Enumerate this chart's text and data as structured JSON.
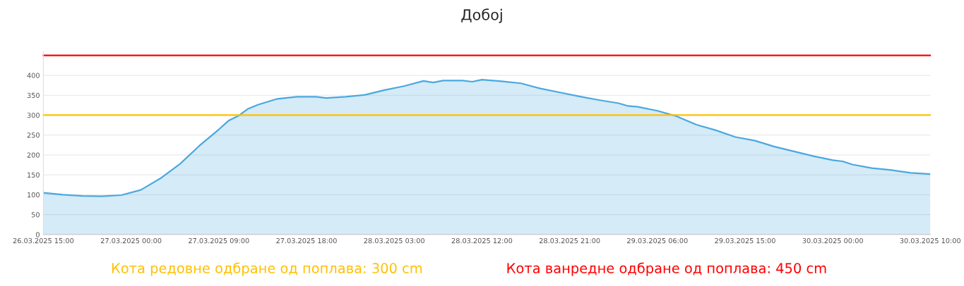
{
  "chart_data": {
    "type": "area",
    "title": "Добој",
    "x": [
      "2025-03-26T15:00",
      "2025-03-26T17:00",
      "2025-03-26T19:00",
      "2025-03-26T21:00",
      "2025-03-26T23:00",
      "2025-03-27T01:00",
      "2025-03-27T03:00",
      "2025-03-27T05:00",
      "2025-03-27T07:00",
      "2025-03-27T09:00",
      "2025-03-27T10:00",
      "2025-03-27T11:00",
      "2025-03-27T12:00",
      "2025-03-27T13:00",
      "2025-03-27T15:00",
      "2025-03-27T17:00",
      "2025-03-27T19:00",
      "2025-03-27T20:00",
      "2025-03-27T22:00",
      "2025-03-28T00:00",
      "2025-03-28T02:00",
      "2025-03-28T04:00",
      "2025-03-28T06:00",
      "2025-03-28T07:00",
      "2025-03-28T08:00",
      "2025-03-28T10:00",
      "2025-03-28T11:00",
      "2025-03-28T12:00",
      "2025-03-28T14:00",
      "2025-03-28T16:00",
      "2025-03-28T18:00",
      "2025-03-28T20:00",
      "2025-03-28T22:00",
      "2025-03-29T00:00",
      "2025-03-29T02:00",
      "2025-03-29T03:00",
      "2025-03-29T04:00",
      "2025-03-29T06:00",
      "2025-03-29T08:00",
      "2025-03-29T10:00",
      "2025-03-29T12:00",
      "2025-03-29T14:00",
      "2025-03-29T16:00",
      "2025-03-29T18:00",
      "2025-03-29T20:00",
      "2025-03-29T22:00",
      "2025-03-30T00:00",
      "2025-03-30T01:00",
      "2025-03-30T02:00",
      "2025-03-30T04:00",
      "2025-03-30T06:00",
      "2025-03-30T08:00",
      "2025-03-30T10:00"
    ],
    "series": [
      {
        "color": "#4aa8e0",
        "values": [
          105,
          100,
          97,
          96,
          99,
          112,
          141,
          177,
          223,
          264,
          286,
          298,
          316,
          326,
          341,
          346,
          346,
          343,
          346,
          351,
          363,
          373,
          386,
          382,
          387,
          387,
          384,
          389,
          385,
          380,
          367,
          357,
          347,
          338,
          330,
          323,
          321,
          311,
          297,
          276,
          262,
          245,
          236,
          221,
          209,
          197,
          187,
          184,
          176,
          167,
          162,
          155,
          152
        ]
      }
    ],
    "xlim": [
      "2025-03-26T15:00",
      "2025-03-30T10:00"
    ],
    "xticks": [
      {
        "value": "2025-03-26T15:00",
        "label": "26.03.2025 15:00"
      },
      {
        "value": "2025-03-27T00:00",
        "label": "27.03.2025 00:00"
      },
      {
        "value": "2025-03-27T09:00",
        "label": "27.03.2025 09:00"
      },
      {
        "value": "2025-03-27T18:00",
        "label": "27.03.2025 18:00"
      },
      {
        "value": "2025-03-28T03:00",
        "label": "28.03.2025 03:00"
      },
      {
        "value": "2025-03-28T12:00",
        "label": "28.03.2025 12:00"
      },
      {
        "value": "2025-03-28T21:00",
        "label": "28.03.2025 21:00"
      },
      {
        "value": "2025-03-29T06:00",
        "label": "29.03.2025 06:00"
      },
      {
        "value": "2025-03-29T15:00",
        "label": "29.03.2025 15:00"
      },
      {
        "value": "2025-03-30T00:00",
        "label": "30.03.2025 00:00"
      },
      {
        "value": "2025-03-30T10:00",
        "label": "30.03.2025 10:00"
      }
    ],
    "ylim": [
      0,
      460
    ],
    "yticks": [
      0,
      50,
      100,
      150,
      200,
      250,
      300,
      350,
      400
    ],
    "grid": "y",
    "ref_lines": [
      {
        "axis": "y",
        "value": 300,
        "label": "Кота редовне одбране од поплава: 300 cm",
        "color": "#ffc000"
      },
      {
        "axis": "y",
        "value": 450,
        "label": "Кота ванредне одбране од поплава: 450 cm",
        "color": "#ff0000"
      }
    ]
  }
}
